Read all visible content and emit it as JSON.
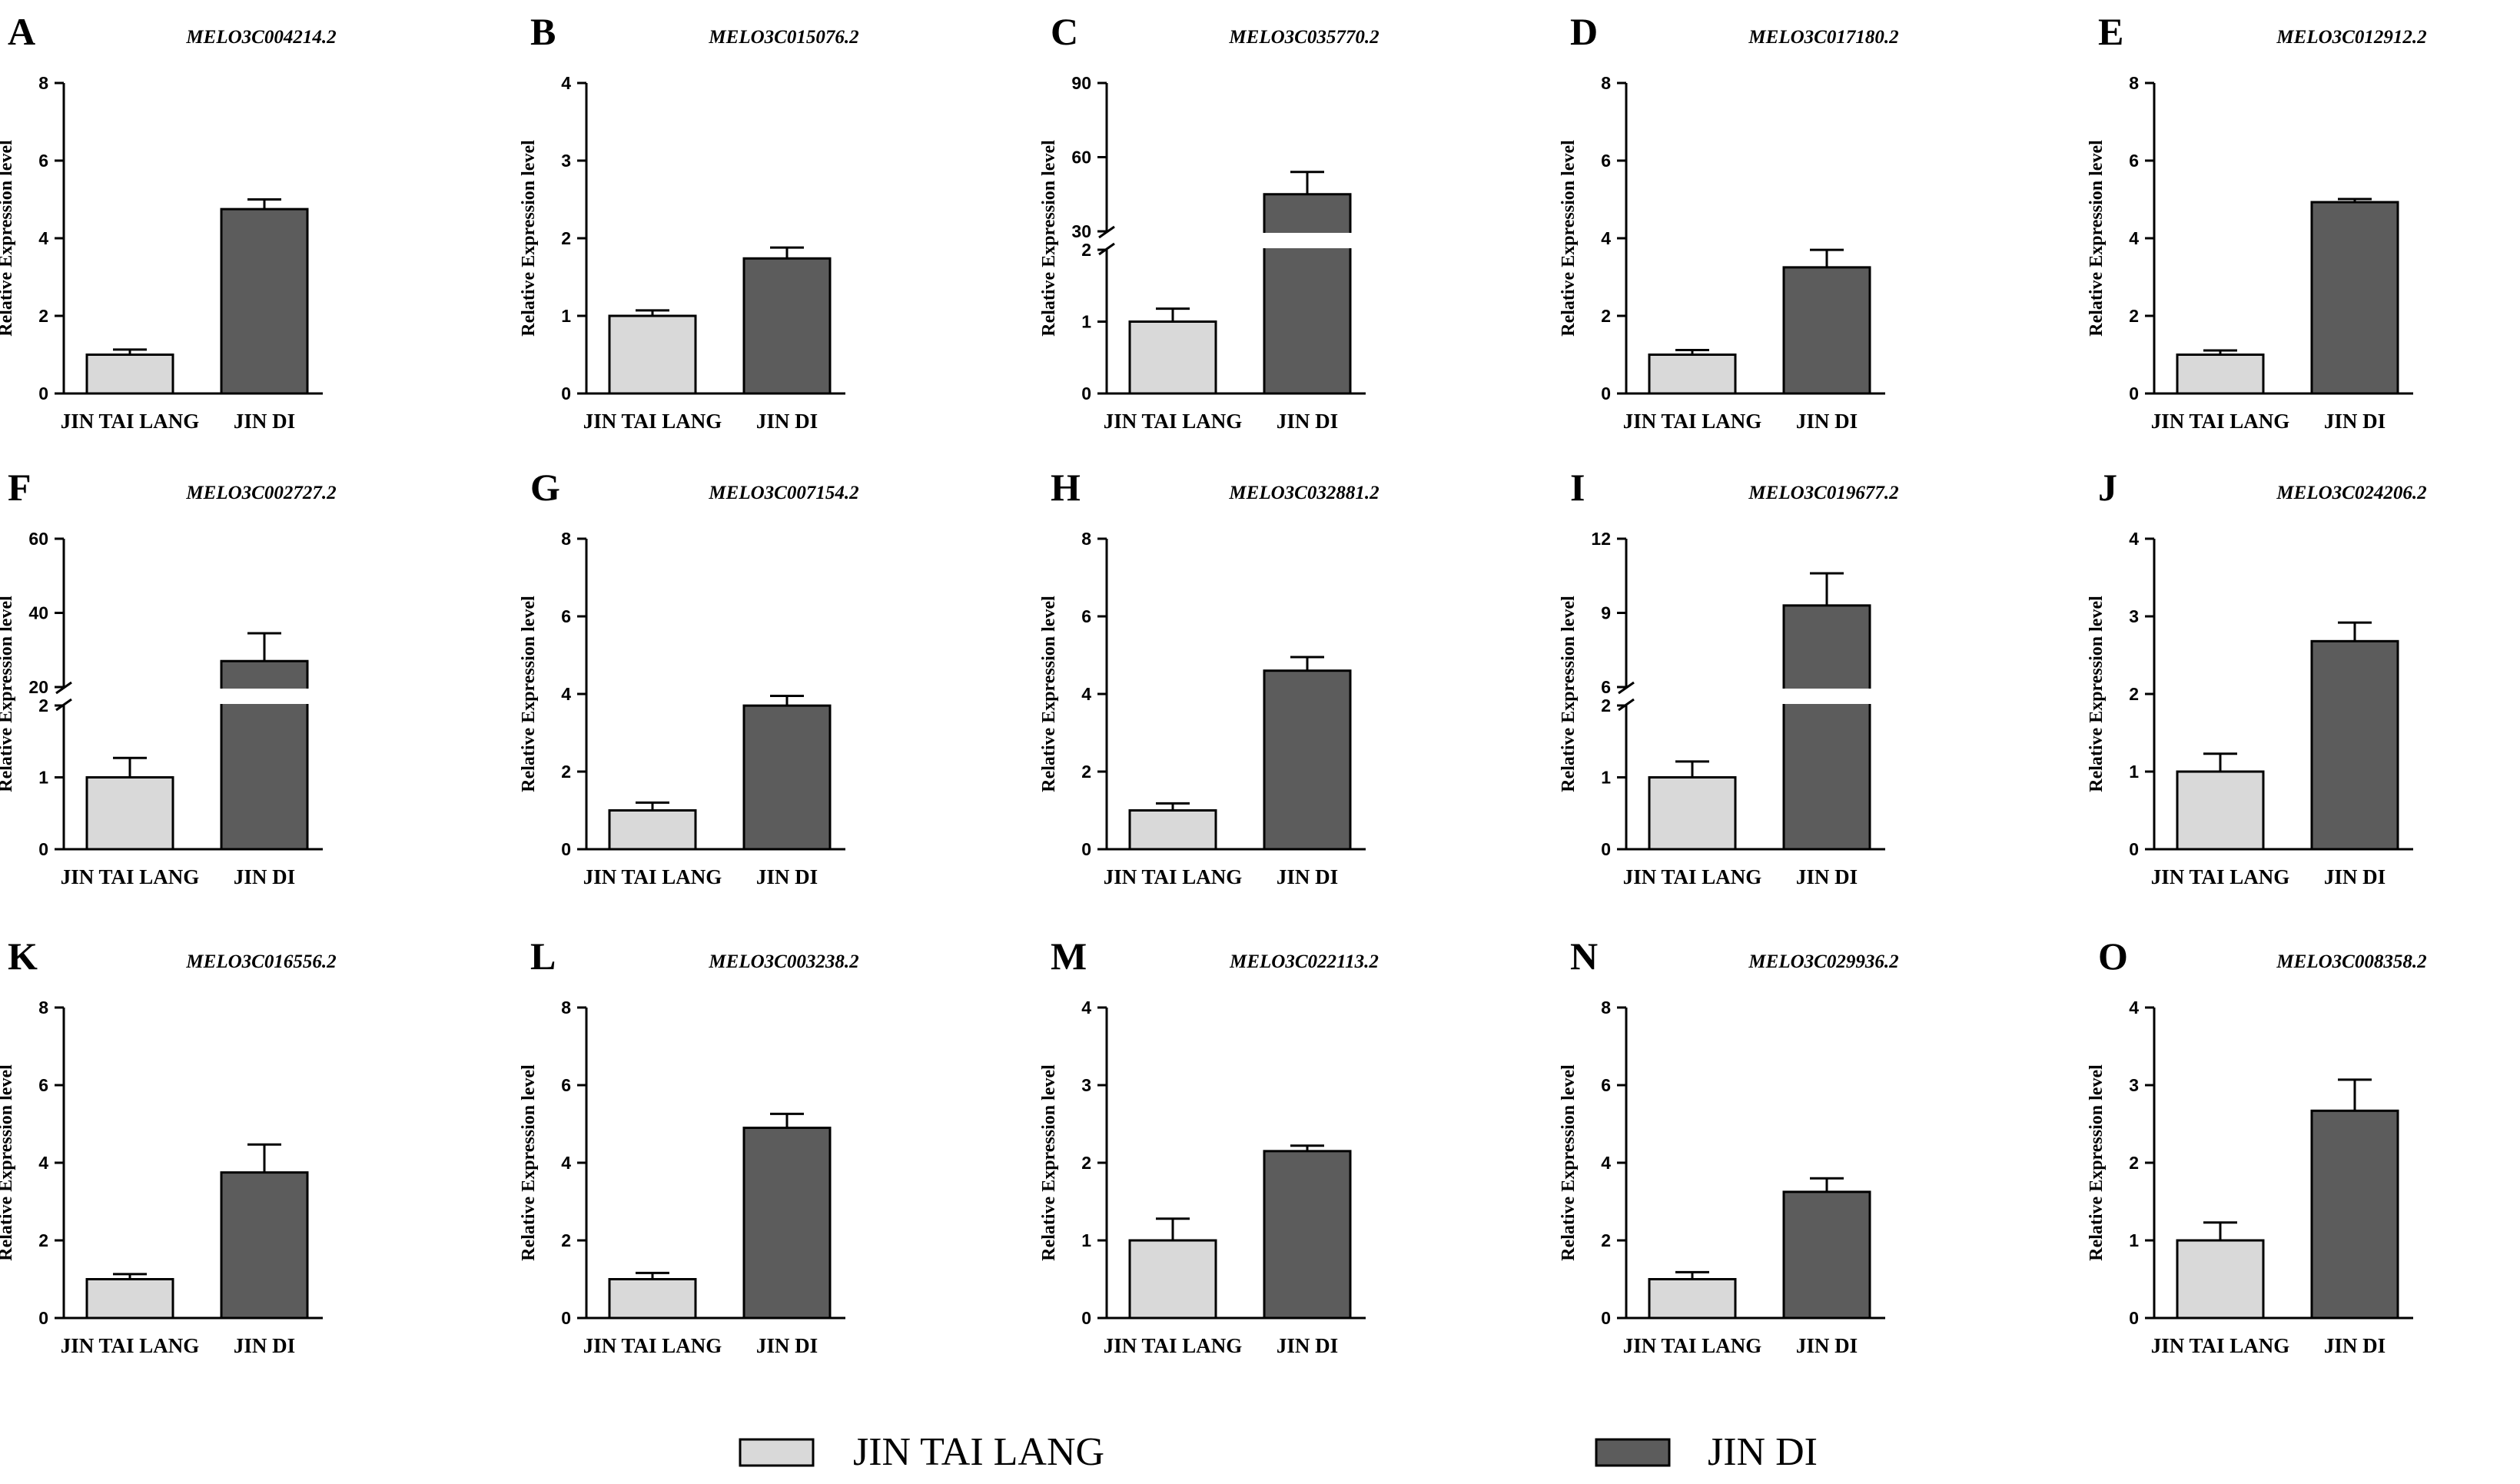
{
  "chart_data": {
    "type": "bar",
    "layout": "grid-3x5",
    "ylabel": "Relative Expression level",
    "categories": [
      "JIN TAI LANG",
      "JIN DI"
    ],
    "legend": {
      "placement": "bottom",
      "entries": [
        {
          "label": "JIN TAI LANG",
          "color": "#d9d9d9"
        },
        {
          "label": "JIN DI",
          "color": "#5c5c5c"
        }
      ]
    },
    "colors": [
      "#d9d9d9",
      "#5c5c5c"
    ],
    "panels": [
      {
        "letter": "A",
        "title": "MELO3C004214.2",
        "ylim": [
          0,
          8
        ],
        "ticks": [
          0,
          2,
          4,
          6,
          8
        ],
        "values": [
          1.0,
          4.75
        ],
        "errors": [
          0.13,
          0.25
        ]
      },
      {
        "letter": "B",
        "title": "MELO3C015076.2",
        "ylim": [
          0,
          4
        ],
        "ticks": [
          0,
          1,
          2,
          3,
          4
        ],
        "values": [
          1.0,
          1.74
        ],
        "errors": [
          0.07,
          0.14
        ]
      },
      {
        "letter": "C",
        "title": "MELO3C035770.2",
        "ylim": [
          0,
          90
        ],
        "ticks": [
          0,
          1,
          2,
          30,
          60,
          90
        ],
        "values": [
          1.0,
          45.0
        ],
        "errors": [
          0.18,
          9.0
        ],
        "break": {
          "lower_max": 2,
          "upper_min": 30,
          "upper_max": 90,
          "lower_ticks": [
            0,
            1,
            2
          ],
          "upper_ticks": [
            30,
            60,
            90
          ]
        }
      },
      {
        "letter": "D",
        "title": "MELO3C017180.2",
        "ylim": [
          0,
          8
        ],
        "ticks": [
          0,
          2,
          4,
          6,
          8
        ],
        "values": [
          1.0,
          3.25
        ],
        "errors": [
          0.12,
          0.45
        ]
      },
      {
        "letter": "E",
        "title": "MELO3C012912.2",
        "ylim": [
          0,
          8
        ],
        "ticks": [
          0,
          2,
          4,
          6,
          8
        ],
        "values": [
          1.0,
          4.93
        ],
        "errors": [
          0.11,
          0.08
        ]
      },
      {
        "letter": "F",
        "title": "MELO3C002727.2",
        "ylim": [
          0,
          60
        ],
        "ticks": [
          0,
          1,
          2,
          20,
          40,
          60
        ],
        "values": [
          1.0,
          27.0
        ],
        "errors": [
          0.27,
          7.5
        ],
        "break": {
          "lower_max": 2,
          "upper_min": 20,
          "upper_max": 60,
          "lower_ticks": [
            0,
            1,
            2
          ],
          "upper_ticks": [
            20,
            40,
            60
          ]
        }
      },
      {
        "letter": "G",
        "title": "MELO3C007154.2",
        "ylim": [
          0,
          8
        ],
        "ticks": [
          0,
          2,
          4,
          6,
          8
        ],
        "values": [
          1.0,
          3.7
        ],
        "errors": [
          0.2,
          0.25
        ]
      },
      {
        "letter": "H",
        "title": "MELO3C032881.2",
        "ylim": [
          0,
          8
        ],
        "ticks": [
          0,
          2,
          4,
          6,
          8
        ],
        "values": [
          1.0,
          4.6
        ],
        "errors": [
          0.18,
          0.35
        ]
      },
      {
        "letter": "I",
        "title": "MELO3C019677.2",
        "ylim": [
          0,
          12
        ],
        "ticks": [
          0,
          1,
          2,
          6,
          9,
          12
        ],
        "values": [
          1.0,
          9.3
        ],
        "errors": [
          0.22,
          1.3
        ],
        "break": {
          "lower_max": 2,
          "upper_min": 6,
          "upper_max": 12,
          "lower_ticks": [
            0,
            1,
            2
          ],
          "upper_ticks": [
            6,
            9,
            12
          ]
        }
      },
      {
        "letter": "J",
        "title": "MELO3C024206.2",
        "ylim": [
          0,
          4
        ],
        "ticks": [
          0,
          1,
          2,
          3,
          4
        ],
        "values": [
          1.0,
          2.68
        ],
        "errors": [
          0.23,
          0.24
        ]
      },
      {
        "letter": "K",
        "title": "MELO3C016556.2",
        "ylim": [
          0,
          8
        ],
        "ticks": [
          0,
          2,
          4,
          6,
          8
        ],
        "values": [
          1.0,
          3.75
        ],
        "errors": [
          0.13,
          0.72
        ]
      },
      {
        "letter": "L",
        "title": "MELO3C003238.2",
        "ylim": [
          0,
          8
        ],
        "ticks": [
          0,
          2,
          4,
          6,
          8
        ],
        "values": [
          1.0,
          4.9
        ],
        "errors": [
          0.16,
          0.36
        ]
      },
      {
        "letter": "M",
        "title": "MELO3C022113.2",
        "ylim": [
          0,
          4
        ],
        "ticks": [
          0,
          1,
          2,
          3,
          4
        ],
        "values": [
          1.0,
          2.15
        ],
        "errors": [
          0.28,
          0.07
        ]
      },
      {
        "letter": "N",
        "title": "MELO3C029936.2",
        "ylim": [
          0,
          8
        ],
        "ticks": [
          0,
          2,
          4,
          6,
          8
        ],
        "values": [
          1.0,
          3.25
        ],
        "errors": [
          0.18,
          0.35
        ]
      },
      {
        "letter": "O",
        "title": "MELO3C008358.2",
        "ylim": [
          0,
          4
        ],
        "ticks": [
          0,
          1,
          2,
          3,
          4
        ],
        "values": [
          1.0,
          2.67
        ],
        "errors": [
          0.23,
          0.4
        ]
      }
    ]
  }
}
